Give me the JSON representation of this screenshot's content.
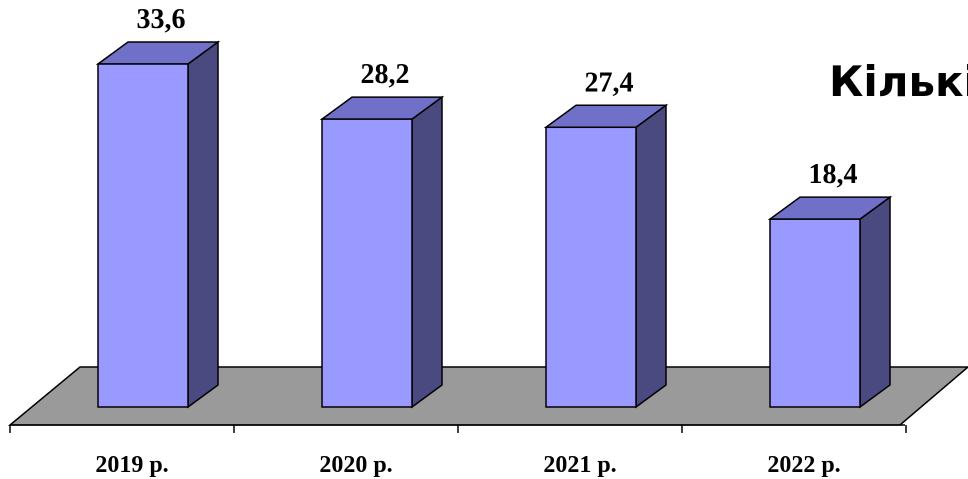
{
  "chart_data": {
    "type": "bar",
    "title": "Кількі",
    "categories": [
      "2019 р.",
      "2020 р.",
      "2021 р.",
      "2022 р."
    ],
    "values": [
      33.6,
      28.2,
      27.4,
      18.4
    ],
    "value_labels": [
      "33,6",
      "28,2",
      "27,4",
      "18,4"
    ],
    "xlabel": "",
    "ylabel": "",
    "ylim": [
      0,
      33.6
    ],
    "grid": false,
    "style": "3d-column",
    "colors": {
      "front": "#9999ff",
      "top": "#7070c8",
      "side": "#4a4a80",
      "floor": "#9a9a9a",
      "outline": "#000000"
    }
  }
}
